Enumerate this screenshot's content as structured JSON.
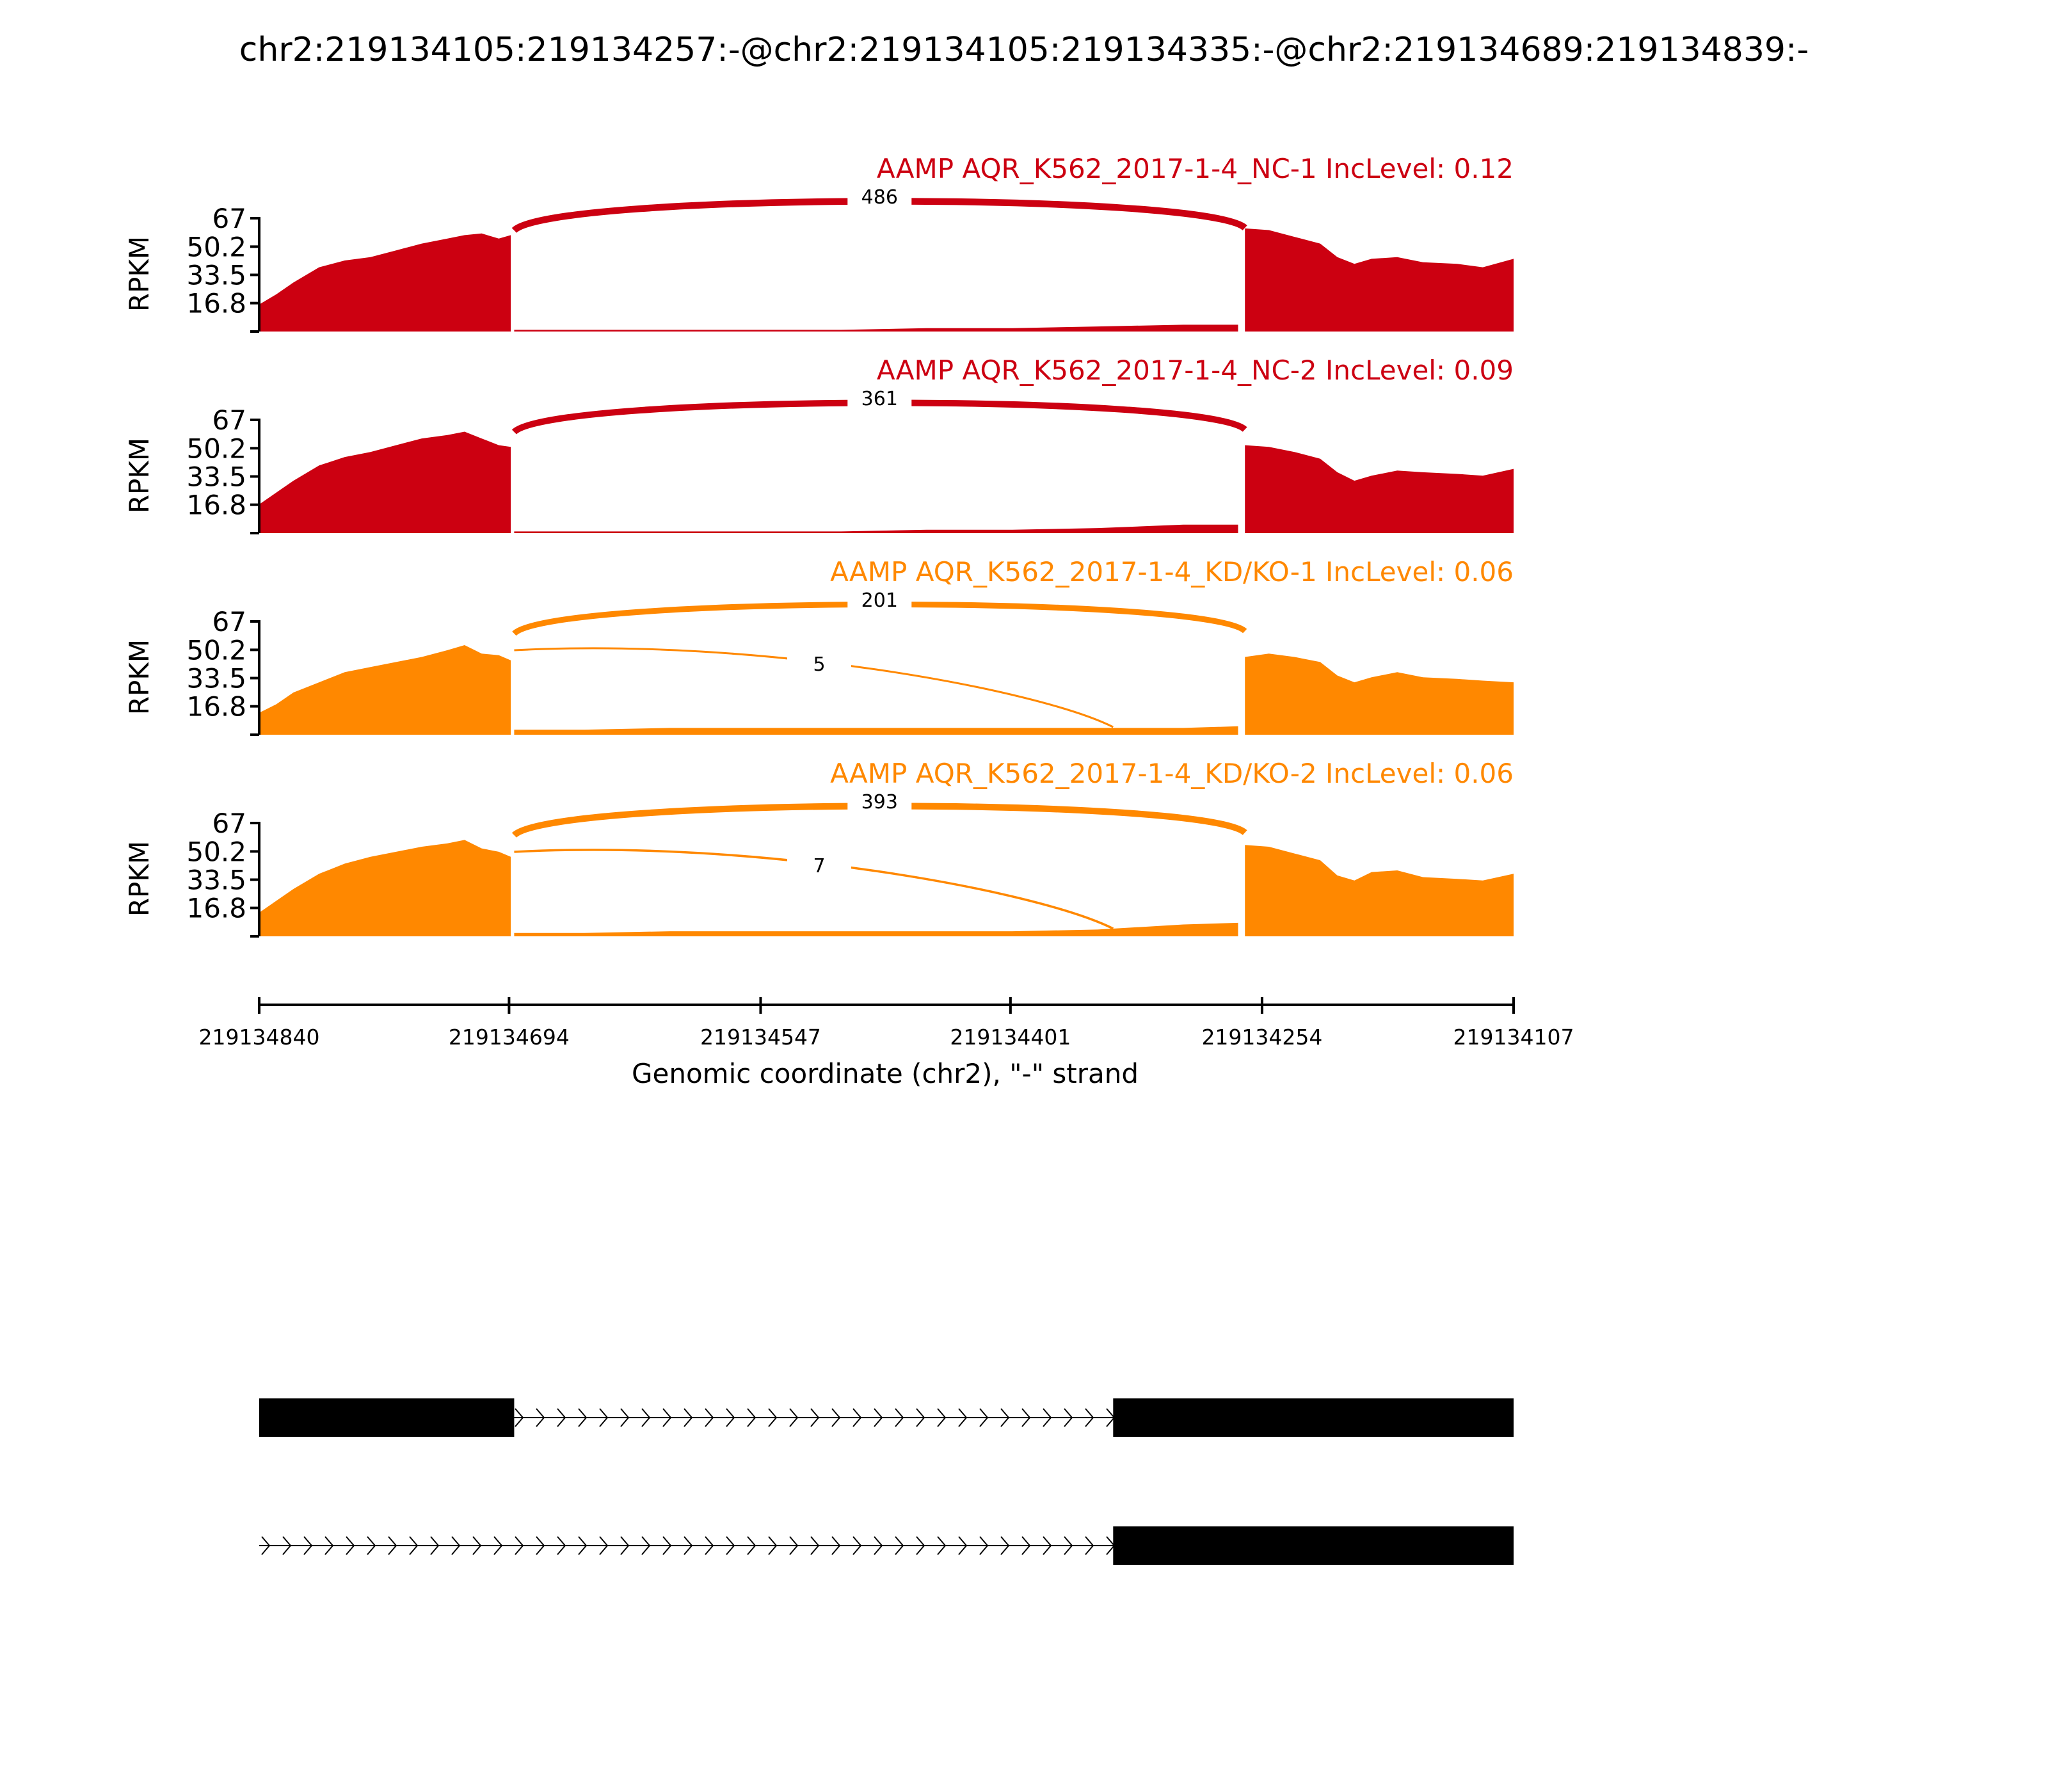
{
  "title": "chr2:219134105:219134257:-@chr2:219134105:219134335:-@chr2:219134689:219134839:-",
  "chart_data": {
    "type": "area",
    "title": "chr2:219134105:219134257:-@chr2:219134105:219134335:-@chr2:219134689:219134839:-",
    "xlabel": "Genomic coordinate (chr2), \"-\" strand",
    "ylabel": "RPKM",
    "x_ticks": [
      "219134840",
      "219134694",
      "219134547",
      "219134401",
      "219134254",
      "219134107"
    ],
    "xlim": [
      219134840,
      219134107
    ],
    "y_ticks": [
      "67",
      "50.2",
      "33.5",
      "16.8"
    ],
    "ylim": [
      0,
      67
    ],
    "upstream_exon": [
      219134840,
      219134691
    ],
    "skipped_exon_end": 219134341,
    "downstream_exon": [
      219134264,
      219134107
    ],
    "panels": [
      {
        "name": "AAMP AQR_K562_2017-1-4_NC-1 IncLevel: 0.12",
        "color": "#cc0011",
        "coverage_upstream": [
          [
            219134840,
            16
          ],
          [
            219134830,
            22
          ],
          [
            219134820,
            29
          ],
          [
            219134805,
            38
          ],
          [
            219134790,
            42
          ],
          [
            219134775,
            44
          ],
          [
            219134760,
            48
          ],
          [
            219134745,
            52
          ],
          [
            219134730,
            55
          ],
          [
            219134720,
            57
          ],
          [
            219134710,
            58
          ],
          [
            219134700,
            55
          ],
          [
            219134693,
            57
          ]
        ],
        "coverage_middle": [
          [
            219134691,
            1
          ],
          [
            219134650,
            1
          ],
          [
            219134600,
            1
          ],
          [
            219134550,
            1
          ],
          [
            219134500,
            1
          ],
          [
            219134450,
            2
          ],
          [
            219134400,
            2
          ],
          [
            219134350,
            3
          ],
          [
            219134300,
            4
          ],
          [
            219134268,
            4
          ]
        ],
        "coverage_downstream": [
          [
            219134264,
            61
          ],
          [
            219134250,
            60
          ],
          [
            219134235,
            56
          ],
          [
            219134220,
            52
          ],
          [
            219134210,
            44
          ],
          [
            219134200,
            40
          ],
          [
            219134190,
            43
          ],
          [
            219134175,
            44
          ],
          [
            219134160,
            41
          ],
          [
            219134140,
            40
          ],
          [
            219134125,
            38
          ],
          [
            219134107,
            43
          ]
        ],
        "junctions": [
          {
            "value": 486,
            "label": "486",
            "from": 219134691,
            "to": 219134264
          }
        ]
      },
      {
        "name": "AAMP AQR_K562_2017-1-4_NC-2 IncLevel: 0.09",
        "color": "#cc0011",
        "coverage_upstream": [
          [
            219134840,
            17
          ],
          [
            219134830,
            24
          ],
          [
            219134820,
            31
          ],
          [
            219134805,
            40
          ],
          [
            219134790,
            45
          ],
          [
            219134775,
            48
          ],
          [
            219134760,
            52
          ],
          [
            219134745,
            56
          ],
          [
            219134730,
            58
          ],
          [
            219134720,
            60
          ],
          [
            219134710,
            56
          ],
          [
            219134700,
            52
          ],
          [
            219134693,
            51
          ]
        ],
        "coverage_middle": [
          [
            219134691,
            1
          ],
          [
            219134650,
            1
          ],
          [
            219134600,
            1
          ],
          [
            219134550,
            1
          ],
          [
            219134500,
            1
          ],
          [
            219134450,
            2
          ],
          [
            219134400,
            2
          ],
          [
            219134350,
            3
          ],
          [
            219134300,
            5
          ],
          [
            219134268,
            5
          ]
        ],
        "coverage_downstream": [
          [
            219134264,
            52
          ],
          [
            219134250,
            51
          ],
          [
            219134235,
            48
          ],
          [
            219134220,
            44
          ],
          [
            219134210,
            36
          ],
          [
            219134200,
            31
          ],
          [
            219134190,
            34
          ],
          [
            219134175,
            37
          ],
          [
            219134160,
            36
          ],
          [
            219134140,
            35
          ],
          [
            219134125,
            34
          ],
          [
            219134107,
            38
          ]
        ],
        "junctions": [
          {
            "value": 361,
            "label": "361",
            "from": 219134691,
            "to": 219134264
          }
        ]
      },
      {
        "name": "AAMP AQR_K562_2017-1-4_KD/KO-1 IncLevel: 0.06",
        "color": "#ff8800",
        "coverage_upstream": [
          [
            219134840,
            13
          ],
          [
            219134830,
            18
          ],
          [
            219134820,
            25
          ],
          [
            219134805,
            31
          ],
          [
            219134790,
            37
          ],
          [
            219134775,
            40
          ],
          [
            219134760,
            43
          ],
          [
            219134745,
            46
          ],
          [
            219134730,
            50
          ],
          [
            219134720,
            53
          ],
          [
            219134710,
            48
          ],
          [
            219134700,
            47
          ],
          [
            219134693,
            44
          ]
        ],
        "coverage_middle": [
          [
            219134691,
            3
          ],
          [
            219134650,
            3
          ],
          [
            219134600,
            4
          ],
          [
            219134550,
            4
          ],
          [
            219134500,
            4
          ],
          [
            219134450,
            4
          ],
          [
            219134400,
            4
          ],
          [
            219134350,
            4
          ],
          [
            219134300,
            4
          ],
          [
            219134268,
            5
          ]
        ],
        "coverage_downstream": [
          [
            219134264,
            46
          ],
          [
            219134250,
            48
          ],
          [
            219134235,
            46
          ],
          [
            219134220,
            43
          ],
          [
            219134210,
            35
          ],
          [
            219134200,
            31
          ],
          [
            219134190,
            34
          ],
          [
            219134175,
            37
          ],
          [
            219134160,
            34
          ],
          [
            219134140,
            33
          ],
          [
            219134125,
            32
          ],
          [
            219134107,
            31
          ]
        ],
        "junctions": [
          {
            "value": 201,
            "label": "201",
            "from": 219134691,
            "to": 219134264
          },
          {
            "value": 5,
            "label": "5",
            "from": 219134691,
            "to": 219134341
          }
        ]
      },
      {
        "name": "AAMP AQR_K562_2017-1-4_KD/KO-2 IncLevel: 0.06",
        "color": "#ff8800",
        "coverage_upstream": [
          [
            219134840,
            14
          ],
          [
            219134830,
            21
          ],
          [
            219134820,
            28
          ],
          [
            219134805,
            37
          ],
          [
            219134790,
            43
          ],
          [
            219134775,
            47
          ],
          [
            219134760,
            50
          ],
          [
            219134745,
            53
          ],
          [
            219134730,
            55
          ],
          [
            219134720,
            57
          ],
          [
            219134710,
            52
          ],
          [
            219134700,
            50
          ],
          [
            219134693,
            47
          ]
        ],
        "coverage_middle": [
          [
            219134691,
            2
          ],
          [
            219134650,
            2
          ],
          [
            219134600,
            3
          ],
          [
            219134550,
            3
          ],
          [
            219134500,
            3
          ],
          [
            219134450,
            3
          ],
          [
            219134400,
            3
          ],
          [
            219134350,
            4
          ],
          [
            219134300,
            7
          ],
          [
            219134268,
            8
          ]
        ],
        "coverage_downstream": [
          [
            219134264,
            54
          ],
          [
            219134250,
            53
          ],
          [
            219134235,
            49
          ],
          [
            219134220,
            45
          ],
          [
            219134210,
            36
          ],
          [
            219134200,
            33
          ],
          [
            219134190,
            38
          ],
          [
            219134175,
            39
          ],
          [
            219134160,
            35
          ],
          [
            219134140,
            34
          ],
          [
            219134125,
            33
          ],
          [
            219134107,
            37
          ]
        ],
        "junctions": [
          {
            "value": 393,
            "label": "393",
            "from": 219134691,
            "to": 219134264
          },
          {
            "value": 7,
            "label": "7",
            "from": 219134691,
            "to": 219134341
          }
        ]
      }
    ],
    "isoforms": [
      {
        "exons": [
          [
            219134840,
            219134691
          ],
          [
            219134341,
            219134107
          ]
        ]
      },
      {
        "exons": [
          [
            219134341,
            219134107
          ]
        ]
      }
    ]
  }
}
